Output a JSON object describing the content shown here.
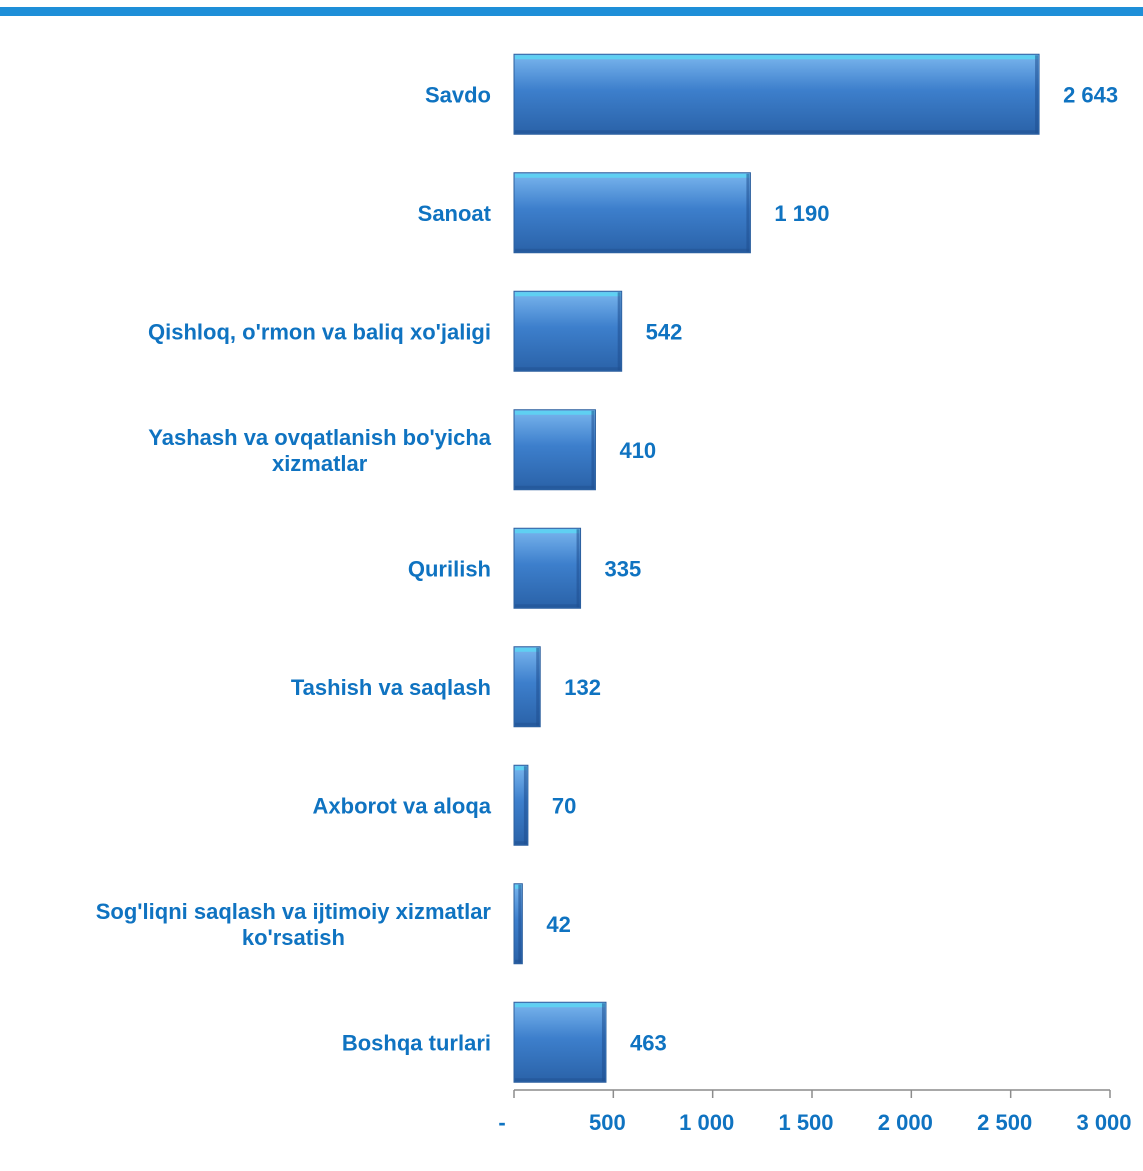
{
  "colors": {
    "top_rule": "#1e8fd8",
    "text": "#0f73c1",
    "bar_light": "#7ab6ee",
    "bar_main": "#3d7fcc",
    "bar_dark": "#1f4f8f",
    "bar_top_bevel": "#5fd0f2",
    "axis": "#8c8c8c"
  },
  "chart_data": {
    "type": "bar",
    "orientation": "horizontal",
    "categories": [
      "Savdo",
      "Sanoat",
      "Qishloq, o'rmon va baliq xo'jaligi",
      "Yashash va ovqatlanish bo'yicha xizmatlar",
      "Qurilish",
      "Tashish va saqlash",
      "Axborot va aloqa",
      "Sog'liqni saqlash va ijtimoiy xizmatlar ko'rsatish",
      "Boshqa turlari"
    ],
    "category_lines": [
      [
        "Savdo"
      ],
      [
        "Sanoat"
      ],
      [
        "Qishloq, o'rmon va baliq xo'jaligi"
      ],
      [
        "Yashash va ovqatlanish bo'yicha",
        "xizmatlar"
      ],
      [
        "Qurilish"
      ],
      [
        "Tashish va saqlash"
      ],
      [
        "Axborot va aloqa"
      ],
      [
        "Sog'liqni saqlash va ijtimoiy xizmatlar",
        "ko'rsatish"
      ],
      [
        "Boshqa turlari"
      ]
    ],
    "values": [
      2643,
      1190,
      542,
      410,
      335,
      132,
      70,
      42,
      463
    ],
    "value_labels": [
      "2 643",
      "1 190",
      "542",
      "410",
      "335",
      "132",
      "70",
      "42",
      "463"
    ],
    "xlim": [
      0,
      3000
    ],
    "xticks": [
      0,
      500,
      1000,
      1500,
      2000,
      2500,
      3000
    ],
    "xtick_labels": [
      "-",
      "500",
      "1 000",
      "1 500",
      "2 000",
      "2 500",
      "3 000"
    ],
    "grid": false,
    "legend": "none",
    "title": "",
    "xlabel": "",
    "ylabel": ""
  }
}
